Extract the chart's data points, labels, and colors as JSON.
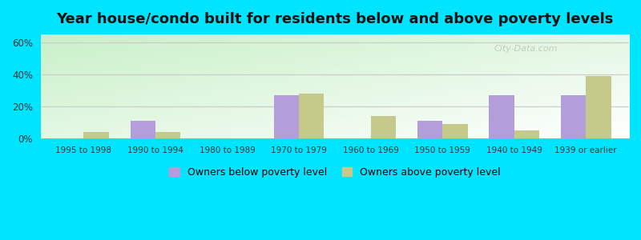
{
  "title": "Year house/condo built for residents below and above poverty levels",
  "categories": [
    "1995 to 1998",
    "1990 to 1994",
    "1980 to 1989",
    "1970 to 1979",
    "1960 to 1969",
    "1950 to 1959",
    "1940 to 1949",
    "1939 or earlier"
  ],
  "below_poverty": [
    0,
    11,
    0,
    27,
    0,
    11,
    27,
    27
  ],
  "above_poverty": [
    4,
    4,
    0,
    28,
    14,
    9,
    5,
    39
  ],
  "below_color": "#b39ddb",
  "above_color": "#c5c98a",
  "outer_bg": "#00e5ff",
  "grad_color_light": "#c8f0c8",
  "grad_color_white": "#ffffff",
  "ylim": [
    0,
    65
  ],
  "yticks": [
    0,
    20,
    40,
    60
  ],
  "ytick_labels": [
    "0%",
    "20%",
    "40%",
    "60%"
  ],
  "legend_below": "Owners below poverty level",
  "legend_above": "Owners above poverty level",
  "bar_width": 0.35,
  "title_fontsize": 13
}
